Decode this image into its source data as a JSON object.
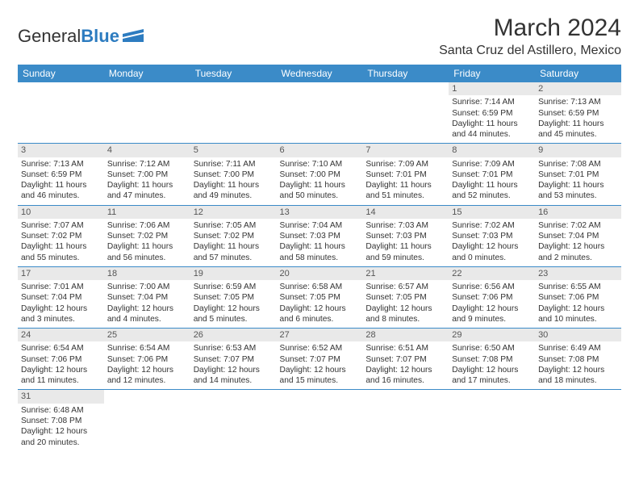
{
  "logo": {
    "text1": "General",
    "text2": "Blue"
  },
  "title": "March 2024",
  "location": "Santa Cruz del Astillero, Mexico",
  "colors": {
    "header_bg": "#3b8bc8",
    "header_text": "#ffffff",
    "daynum_bg": "#e9e9e9",
    "border": "#3b8bc8",
    "accent": "#2d7cc0"
  },
  "weekdays": [
    "Sunday",
    "Monday",
    "Tuesday",
    "Wednesday",
    "Thursday",
    "Friday",
    "Saturday"
  ],
  "weeks": [
    [
      {
        "empty": true
      },
      {
        "empty": true
      },
      {
        "empty": true
      },
      {
        "empty": true
      },
      {
        "empty": true
      },
      {
        "day": "1",
        "sunrise": "7:14 AM",
        "sunset": "6:59 PM",
        "daylight": "11 hours and 44 minutes."
      },
      {
        "day": "2",
        "sunrise": "7:13 AM",
        "sunset": "6:59 PM",
        "daylight": "11 hours and 45 minutes."
      }
    ],
    [
      {
        "day": "3",
        "sunrise": "7:13 AM",
        "sunset": "6:59 PM",
        "daylight": "11 hours and 46 minutes."
      },
      {
        "day": "4",
        "sunrise": "7:12 AM",
        "sunset": "7:00 PM",
        "daylight": "11 hours and 47 minutes."
      },
      {
        "day": "5",
        "sunrise": "7:11 AM",
        "sunset": "7:00 PM",
        "daylight": "11 hours and 49 minutes."
      },
      {
        "day": "6",
        "sunrise": "7:10 AM",
        "sunset": "7:00 PM",
        "daylight": "11 hours and 50 minutes."
      },
      {
        "day": "7",
        "sunrise": "7:09 AM",
        "sunset": "7:01 PM",
        "daylight": "11 hours and 51 minutes."
      },
      {
        "day": "8",
        "sunrise": "7:09 AM",
        "sunset": "7:01 PM",
        "daylight": "11 hours and 52 minutes."
      },
      {
        "day": "9",
        "sunrise": "7:08 AM",
        "sunset": "7:01 PM",
        "daylight": "11 hours and 53 minutes."
      }
    ],
    [
      {
        "day": "10",
        "sunrise": "7:07 AM",
        "sunset": "7:02 PM",
        "daylight": "11 hours and 55 minutes."
      },
      {
        "day": "11",
        "sunrise": "7:06 AM",
        "sunset": "7:02 PM",
        "daylight": "11 hours and 56 minutes."
      },
      {
        "day": "12",
        "sunrise": "7:05 AM",
        "sunset": "7:02 PM",
        "daylight": "11 hours and 57 minutes."
      },
      {
        "day": "13",
        "sunrise": "7:04 AM",
        "sunset": "7:03 PM",
        "daylight": "11 hours and 58 minutes."
      },
      {
        "day": "14",
        "sunrise": "7:03 AM",
        "sunset": "7:03 PM",
        "daylight": "11 hours and 59 minutes."
      },
      {
        "day": "15",
        "sunrise": "7:02 AM",
        "sunset": "7:03 PM",
        "daylight": "12 hours and 0 minutes."
      },
      {
        "day": "16",
        "sunrise": "7:02 AM",
        "sunset": "7:04 PM",
        "daylight": "12 hours and 2 minutes."
      }
    ],
    [
      {
        "day": "17",
        "sunrise": "7:01 AM",
        "sunset": "7:04 PM",
        "daylight": "12 hours and 3 minutes."
      },
      {
        "day": "18",
        "sunrise": "7:00 AM",
        "sunset": "7:04 PM",
        "daylight": "12 hours and 4 minutes."
      },
      {
        "day": "19",
        "sunrise": "6:59 AM",
        "sunset": "7:05 PM",
        "daylight": "12 hours and 5 minutes."
      },
      {
        "day": "20",
        "sunrise": "6:58 AM",
        "sunset": "7:05 PM",
        "daylight": "12 hours and 6 minutes."
      },
      {
        "day": "21",
        "sunrise": "6:57 AM",
        "sunset": "7:05 PM",
        "daylight": "12 hours and 8 minutes."
      },
      {
        "day": "22",
        "sunrise": "6:56 AM",
        "sunset": "7:06 PM",
        "daylight": "12 hours and 9 minutes."
      },
      {
        "day": "23",
        "sunrise": "6:55 AM",
        "sunset": "7:06 PM",
        "daylight": "12 hours and 10 minutes."
      }
    ],
    [
      {
        "day": "24",
        "sunrise": "6:54 AM",
        "sunset": "7:06 PM",
        "daylight": "12 hours and 11 minutes."
      },
      {
        "day": "25",
        "sunrise": "6:54 AM",
        "sunset": "7:06 PM",
        "daylight": "12 hours and 12 minutes."
      },
      {
        "day": "26",
        "sunrise": "6:53 AM",
        "sunset": "7:07 PM",
        "daylight": "12 hours and 14 minutes."
      },
      {
        "day": "27",
        "sunrise": "6:52 AM",
        "sunset": "7:07 PM",
        "daylight": "12 hours and 15 minutes."
      },
      {
        "day": "28",
        "sunrise": "6:51 AM",
        "sunset": "7:07 PM",
        "daylight": "12 hours and 16 minutes."
      },
      {
        "day": "29",
        "sunrise": "6:50 AM",
        "sunset": "7:08 PM",
        "daylight": "12 hours and 17 minutes."
      },
      {
        "day": "30",
        "sunrise": "6:49 AM",
        "sunset": "7:08 PM",
        "daylight": "12 hours and 18 minutes."
      }
    ],
    [
      {
        "day": "31",
        "sunrise": "6:48 AM",
        "sunset": "7:08 PM",
        "daylight": "12 hours and 20 minutes."
      },
      {
        "empty": true
      },
      {
        "empty": true
      },
      {
        "empty": true
      },
      {
        "empty": true
      },
      {
        "empty": true
      },
      {
        "empty": true
      }
    ]
  ]
}
